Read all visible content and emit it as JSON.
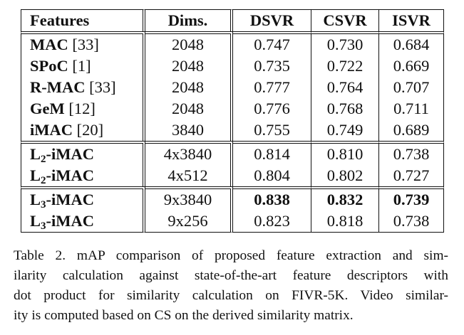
{
  "table": {
    "headers": [
      "Features",
      "Dims.",
      "DSVR",
      "CSVR",
      "ISVR"
    ],
    "groups": [
      [
        {
          "name": "MAC",
          "ref": "[33]",
          "sub": "",
          "dims": "2048",
          "dsvr": "0.747",
          "csvr": "0.730",
          "isvr": "0.684",
          "bold": [
            false,
            false,
            false
          ]
        },
        {
          "name": "SPoC",
          "ref": "[1]",
          "sub": "",
          "dims": "2048",
          "dsvr": "0.735",
          "csvr": "0.722",
          "isvr": "0.669",
          "bold": [
            false,
            false,
            false
          ]
        },
        {
          "name": "R-MAC",
          "ref": "[33]",
          "sub": "",
          "dims": "2048",
          "dsvr": "0.777",
          "csvr": "0.764",
          "isvr": "0.707",
          "bold": [
            false,
            false,
            false
          ]
        },
        {
          "name": "GeM",
          "ref": "[12]",
          "sub": "",
          "dims": "2048",
          "dsvr": "0.776",
          "csvr": "0.768",
          "isvr": "0.711",
          "bold": [
            false,
            false,
            false
          ]
        },
        {
          "name": "iMAC",
          "ref": "[20]",
          "sub": "",
          "dims": "3840",
          "dsvr": "0.755",
          "csvr": "0.749",
          "isvr": "0.689",
          "bold": [
            false,
            false,
            false
          ]
        }
      ],
      [
        {
          "name": "L",
          "sub": "2",
          "suffix": "-iMAC",
          "ref": "",
          "dims": "4x3840",
          "dsvr": "0.814",
          "csvr": "0.810",
          "isvr": "0.738",
          "bold": [
            false,
            false,
            false
          ]
        },
        {
          "name": "L",
          "sub": "2",
          "suffix": "-iMAC",
          "ref": "",
          "dims": "4x512",
          "dsvr": "0.804",
          "csvr": "0.802",
          "isvr": "0.727",
          "bold": [
            false,
            false,
            false
          ]
        }
      ],
      [
        {
          "name": "L",
          "sub": "3",
          "suffix": "-iMAC",
          "ref": "",
          "dims": "9x3840",
          "dsvr": "0.838",
          "csvr": "0.832",
          "isvr": "0.739",
          "bold": [
            true,
            true,
            true
          ]
        },
        {
          "name": "L",
          "sub": "3",
          "suffix": "-iMAC",
          "ref": "",
          "dims": "9x256",
          "dsvr": "0.823",
          "csvr": "0.818",
          "isvr": "0.738",
          "bold": [
            false,
            false,
            false
          ]
        }
      ]
    ]
  },
  "caption": {
    "lines": [
      "Table 2. mAP comparison of proposed feature extraction and sim-",
      "ilarity calculation against state-of-the-art feature descriptors with",
      "dot product for similarity calculation on FIVR-5K. Video similar-",
      "ity is computed based on CS on the derived similarity matrix."
    ]
  }
}
